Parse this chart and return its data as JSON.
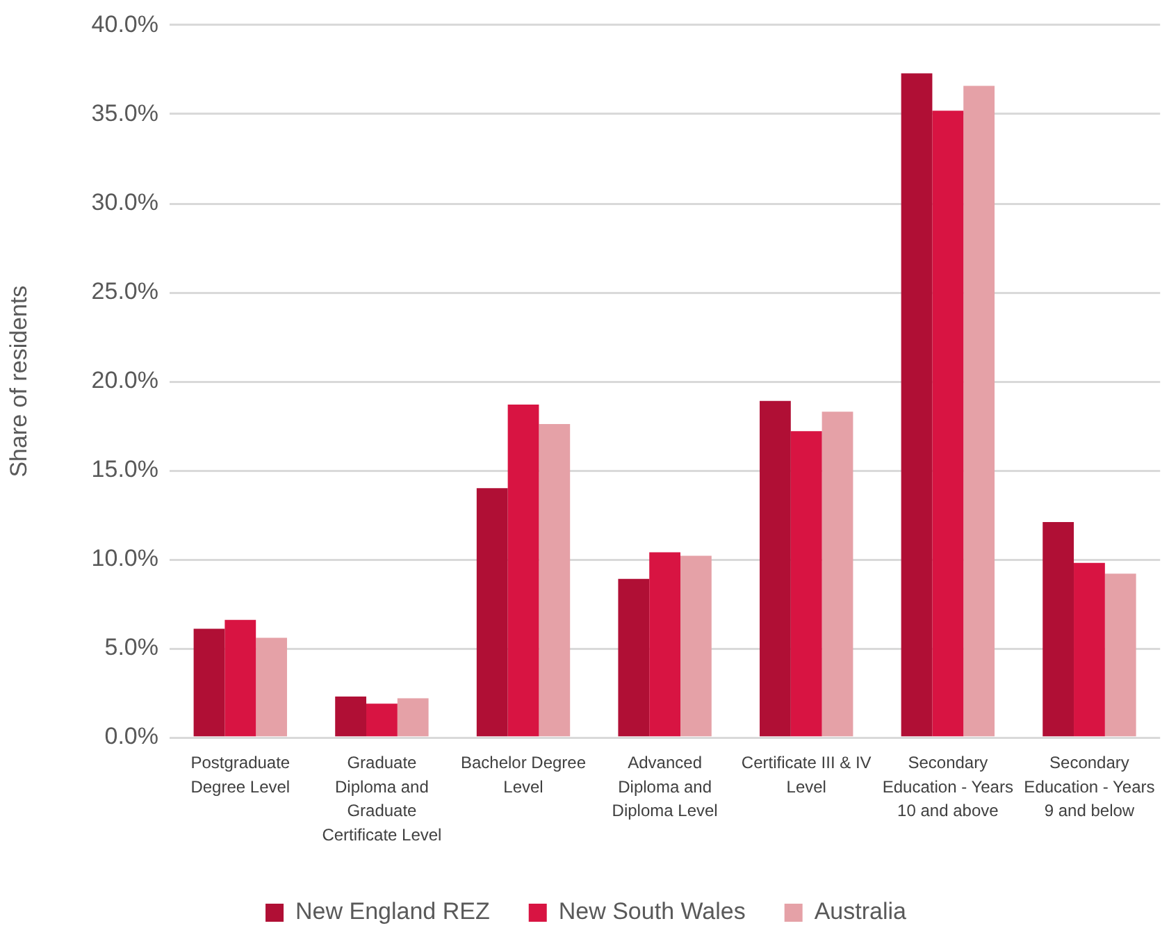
{
  "chart_data": {
    "type": "bar",
    "ylabel": "Share of residents",
    "categories": [
      "Postgraduate Degree Level",
      "Graduate Diploma and Graduate Certificate Level",
      "Bachelor Degree Level",
      "Advanced Diploma and Diploma Level",
      "Certificate III & IV Level",
      "Secondary Education - Years 10 and above",
      "Secondary Education - Years 9 and below"
    ],
    "series": [
      {
        "name": "New England REZ",
        "color": "#b00f35",
        "values": [
          6.1,
          2.3,
          14.0,
          8.9,
          18.9,
          37.3,
          12.1
        ]
      },
      {
        "name": "New South Wales",
        "color": "#d81442",
        "values": [
          6.6,
          1.9,
          18.7,
          10.4,
          17.2,
          35.2,
          9.8
        ]
      },
      {
        "name": "Australia",
        "color": "#e5a1a7",
        "values": [
          5.6,
          2.2,
          17.6,
          10.2,
          18.3,
          36.6,
          9.2
        ]
      }
    ],
    "ylim": [
      0,
      40
    ],
    "yticks": [
      {
        "value": 0,
        "label": "0.0%"
      },
      {
        "value": 5,
        "label": "5.0%"
      },
      {
        "value": 10,
        "label": "10.0%"
      },
      {
        "value": 15,
        "label": "15.0%"
      },
      {
        "value": 20,
        "label": "20.0%"
      },
      {
        "value": 25,
        "label": "25.0%"
      },
      {
        "value": 30,
        "label": "30.0%"
      },
      {
        "value": 35,
        "label": "35.0%"
      },
      {
        "value": 40,
        "label": "40.0%"
      }
    ],
    "grid": "y",
    "legend": "bottom"
  }
}
